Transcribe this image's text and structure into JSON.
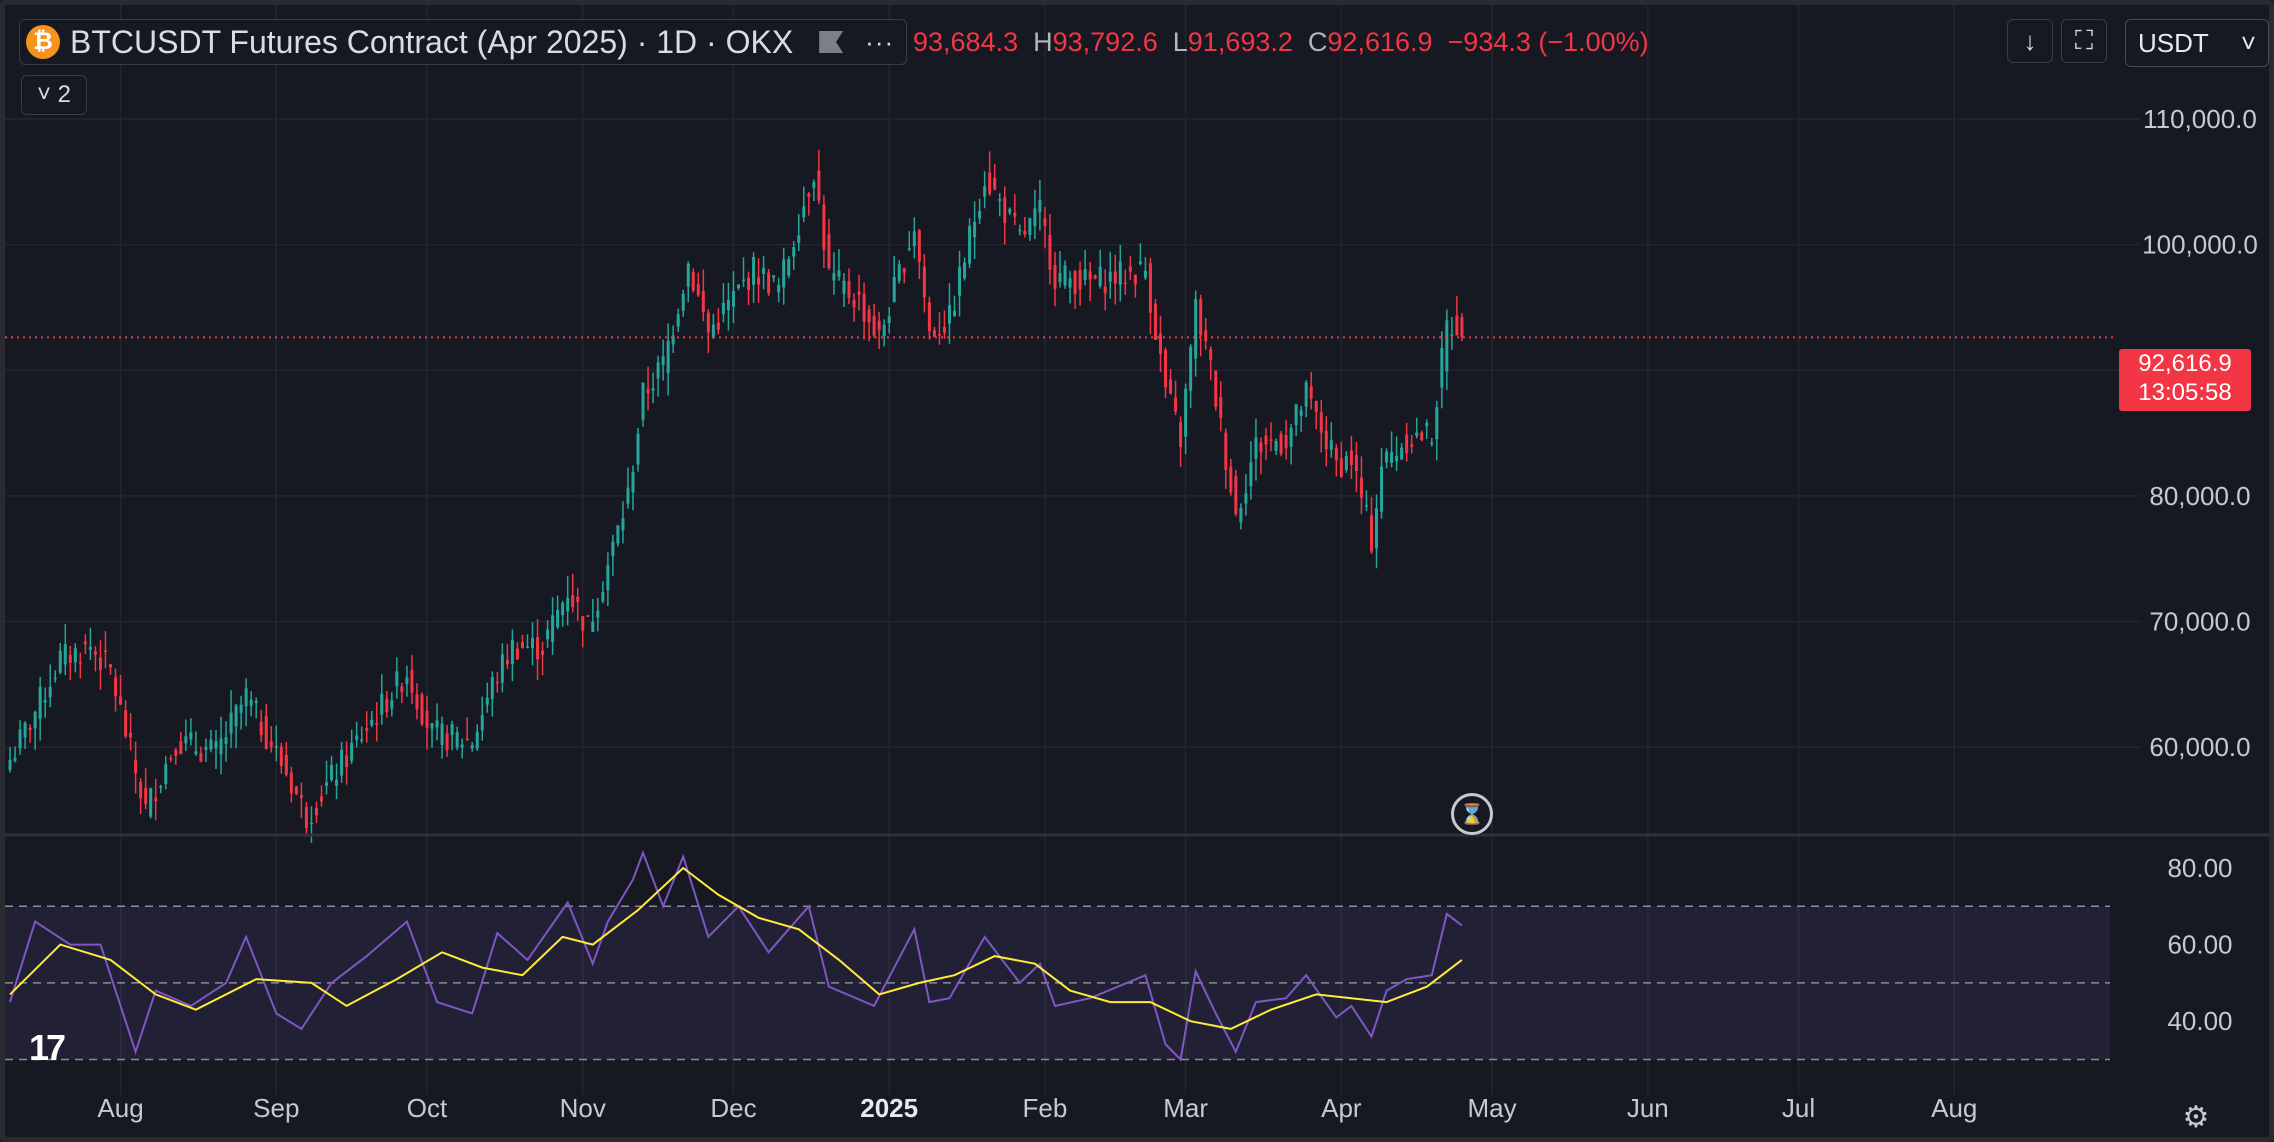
{
  "header": {
    "symbol_title": "BTCUSDT Futures Contract (Apr 2025) · 1D · OKX",
    "coin_glyph": "₿",
    "more_icon": "···",
    "indicator_count_label": "˅ 2",
    "ohlc": {
      "o_value": "93,684.3",
      "h_key": "H",
      "h_value": "93,792.6",
      "l_key": "L",
      "l_value": "91,693.2",
      "c_key": "C",
      "c_value": "92,616.9",
      "change": "−934.3 (−1.00%)"
    },
    "down_icon": "↓",
    "screen_icon": "⛶",
    "currency": "USDT",
    "currency_caret": "˅"
  },
  "price_tag": {
    "price": "92,616.9",
    "countdown": "13:05:58"
  },
  "logo_text": "17",
  "hourglass_icon": "⌛",
  "settings_icon": "⚙",
  "colors": {
    "up": "#26a69a",
    "down": "#f23645",
    "rsi": "#7e57c2",
    "rsi_ma": "#ffeb3b",
    "bg": "#161822",
    "grid": "#24262f"
  },
  "chart_data": {
    "type": "candlestick",
    "title": "BTCUSDT Futures Contract (Apr 2025) · 1D · OKX",
    "price_axis": {
      "ticks": [
        60000,
        70000,
        80000,
        100000,
        110000
      ],
      "tick_labels": [
        "60,000.0",
        "70,000.0",
        "80,000.0",
        "100,000.0",
        "110,000.0"
      ],
      "range": [
        53000,
        113500
      ]
    },
    "time_axis": {
      "labels": [
        "Aug",
        "Sep",
        "Oct",
        "Nov",
        "Dec",
        "2025",
        "Feb",
        "Mar",
        "Apr",
        "May",
        "Jun",
        "Jul",
        "Aug"
      ],
      "label_dates": [
        "2024-08-01",
        "2024-09-01",
        "2024-10-01",
        "2024-11-01",
        "2024-12-01",
        "2025-01-01",
        "2025-02-01",
        "2025-03-01",
        "2025-04-01",
        "2025-05-01",
        "2025-06-01",
        "2025-07-01",
        "2025-08-01"
      ],
      "range": [
        "2024-07-09",
        "2025-09-01"
      ]
    },
    "last_price": 92616.9,
    "close_path": [
      [
        "2024-07-10",
        59000
      ],
      [
        "2024-07-14",
        62000
      ],
      [
        "2024-07-20",
        67000
      ],
      [
        "2024-07-26",
        68000
      ],
      [
        "2024-07-30",
        66000
      ],
      [
        "2024-08-04",
        58000
      ],
      [
        "2024-08-06",
        55000
      ],
      [
        "2024-08-12",
        60500
      ],
      [
        "2024-08-20",
        59500
      ],
      [
        "2024-08-26",
        64000
      ],
      [
        "2024-09-03",
        58000
      ],
      [
        "2024-09-07",
        54500
      ],
      [
        "2024-09-12",
        57500
      ],
      [
        "2024-09-18",
        61000
      ],
      [
        "2024-09-27",
        66000
      ],
      [
        "2024-10-02",
        61000
      ],
      [
        "2024-10-10",
        60500
      ],
      [
        "2024-10-14",
        65000
      ],
      [
        "2024-10-18",
        68000
      ],
      [
        "2024-10-24",
        68000
      ],
      [
        "2024-10-29",
        72500
      ],
      [
        "2024-11-02",
        69500
      ],
      [
        "2024-11-06",
        74500
      ],
      [
        "2024-11-10",
        80000
      ],
      [
        "2024-11-13",
        88000
      ],
      [
        "2024-11-17",
        90500
      ],
      [
        "2024-11-22",
        98500
      ],
      [
        "2024-11-26",
        93000
      ],
      [
        "2024-12-05",
        98000
      ],
      [
        "2024-12-10",
        96500
      ],
      [
        "2024-12-17",
        106000
      ],
      [
        "2024-12-20",
        97500
      ],
      [
        "2024-12-26",
        95500
      ],
      [
        "2024-12-30",
        92500
      ],
      [
        "2025-01-06",
        101500
      ],
      [
        "2025-01-09",
        93000
      ],
      [
        "2025-01-13",
        94000
      ],
      [
        "2025-01-20",
        105500
      ],
      [
        "2025-01-27",
        100500
      ],
      [
        "2025-01-31",
        102500
      ],
      [
        "2025-02-03",
        97500
      ],
      [
        "2025-02-10",
        97000
      ],
      [
        "2025-02-21",
        98000
      ],
      [
        "2025-02-25",
        88500
      ],
      [
        "2025-02-28",
        84500
      ],
      [
        "2025-03-03",
        95000
      ],
      [
        "2025-03-06",
        90000
      ],
      [
        "2025-03-11",
        78500
      ],
      [
        "2025-03-15",
        84000
      ],
      [
        "2025-03-21",
        84500
      ],
      [
        "2025-03-25",
        88000
      ],
      [
        "2025-03-31",
        82500
      ],
      [
        "2025-04-03",
        83000
      ],
      [
        "2025-04-07",
        76500
      ],
      [
        "2025-04-09",
        82500
      ],
      [
        "2025-04-14",
        84500
      ],
      [
        "2025-04-19",
        85000
      ],
      [
        "2025-04-22",
        93500
      ],
      [
        "2025-04-24",
        93700
      ],
      [
        "2025-04-25",
        92616.9
      ]
    ],
    "rsi": {
      "ticks": [
        40,
        60,
        80
      ],
      "tick_labels": [
        "40.00",
        "60.00",
        "80.00"
      ],
      "range": [
        27,
        86
      ],
      "bands": [
        30,
        50,
        70
      ],
      "line": [
        [
          "2024-07-10",
          45
        ],
        [
          "2024-07-15",
          66
        ],
        [
          "2024-07-22",
          60
        ],
        [
          "2024-07-28",
          60
        ],
        [
          "2024-08-04",
          32
        ],
        [
          "2024-08-08",
          48
        ],
        [
          "2024-08-15",
          44
        ],
        [
          "2024-08-22",
          50
        ],
        [
          "2024-08-26",
          62
        ],
        [
          "2024-09-01",
          42
        ],
        [
          "2024-09-06",
          38
        ],
        [
          "2024-09-12",
          50
        ],
        [
          "2024-09-19",
          57
        ],
        [
          "2024-09-27",
          66
        ],
        [
          "2024-10-03",
          45
        ],
        [
          "2024-10-10",
          42
        ],
        [
          "2024-10-15",
          63
        ],
        [
          "2024-10-21",
          56
        ],
        [
          "2024-10-29",
          71
        ],
        [
          "2024-11-03",
          55
        ],
        [
          "2024-11-06",
          66
        ],
        [
          "2024-11-11",
          77
        ],
        [
          "2024-11-13",
          84
        ],
        [
          "2024-11-17",
          70
        ],
        [
          "2024-11-21",
          83
        ],
        [
          "2024-11-26",
          62
        ],
        [
          "2024-12-02",
          70
        ],
        [
          "2024-12-08",
          58
        ],
        [
          "2024-12-16",
          70
        ],
        [
          "2024-12-20",
          49
        ],
        [
          "2024-12-29",
          44
        ],
        [
          "2025-01-06",
          64
        ],
        [
          "2025-01-09",
          45
        ],
        [
          "2025-01-13",
          46
        ],
        [
          "2025-01-20",
          62
        ],
        [
          "2025-01-27",
          50
        ],
        [
          "2025-01-31",
          55
        ],
        [
          "2025-02-03",
          44
        ],
        [
          "2025-02-10",
          46
        ],
        [
          "2025-02-21",
          52
        ],
        [
          "2025-02-25",
          34
        ],
        [
          "2025-02-28",
          30
        ],
        [
          "2025-03-03",
          53
        ],
        [
          "2025-03-07",
          42
        ],
        [
          "2025-03-11",
          32
        ],
        [
          "2025-03-15",
          45
        ],
        [
          "2025-03-21",
          46
        ],
        [
          "2025-03-25",
          52
        ],
        [
          "2025-03-31",
          41
        ],
        [
          "2025-04-03",
          44
        ],
        [
          "2025-04-07",
          36
        ],
        [
          "2025-04-10",
          48
        ],
        [
          "2025-04-14",
          51
        ],
        [
          "2025-04-19",
          52
        ],
        [
          "2025-04-22",
          68
        ],
        [
          "2025-04-25",
          65
        ]
      ],
      "ma": [
        [
          "2024-07-10",
          47
        ],
        [
          "2024-07-20",
          60
        ],
        [
          "2024-07-30",
          56
        ],
        [
          "2024-08-08",
          47
        ],
        [
          "2024-08-16",
          43
        ],
        [
          "2024-08-28",
          51
        ],
        [
          "2024-09-08",
          50
        ],
        [
          "2024-09-15",
          44
        ],
        [
          "2024-09-25",
          51
        ],
        [
          "2024-10-04",
          58
        ],
        [
          "2024-10-12",
          54
        ],
        [
          "2024-10-20",
          52
        ],
        [
          "2024-10-28",
          62
        ],
        [
          "2024-11-03",
          60
        ],
        [
          "2024-11-12",
          69
        ],
        [
          "2024-11-21",
          80
        ],
        [
          "2024-11-28",
          73
        ],
        [
          "2024-12-06",
          67
        ],
        [
          "2024-12-14",
          64
        ],
        [
          "2024-12-22",
          56
        ],
        [
          "2024-12-30",
          47
        ],
        [
          "2025-01-07",
          50
        ],
        [
          "2025-01-14",
          52
        ],
        [
          "2025-01-22",
          57
        ],
        [
          "2025-01-30",
          55
        ],
        [
          "2025-02-06",
          48
        ],
        [
          "2025-02-14",
          45
        ],
        [
          "2025-02-22",
          45
        ],
        [
          "2025-03-02",
          40
        ],
        [
          "2025-03-10",
          38
        ],
        [
          "2025-03-18",
          43
        ],
        [
          "2025-03-27",
          47
        ],
        [
          "2025-04-03",
          46
        ],
        [
          "2025-04-10",
          45
        ],
        [
          "2025-04-18",
          49
        ],
        [
          "2025-04-25",
          56
        ]
      ]
    },
    "grid": true
  }
}
